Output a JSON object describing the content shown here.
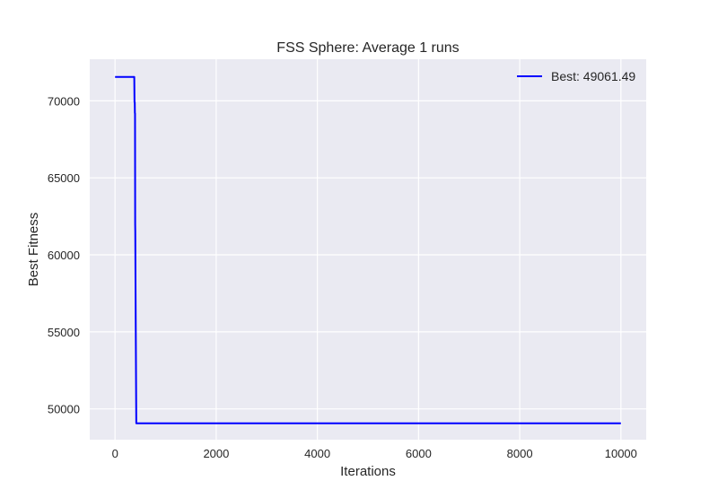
{
  "chart_data": {
    "type": "line",
    "title": "FSS Sphere: Average 1 runs",
    "xlabel": "Iterations",
    "ylabel": "Best Fitness",
    "xlim": [
      -500,
      10500
    ],
    "ylim": [
      48000,
      72700
    ],
    "xticks": [
      0,
      2000,
      4000,
      6000,
      8000,
      10000
    ],
    "xtick_labels": [
      "0",
      "2000",
      "4000",
      "6000",
      "8000",
      "10000"
    ],
    "yticks": [
      50000,
      55000,
      60000,
      65000,
      70000
    ],
    "ytick_labels": [
      "50000",
      "55000",
      "60000",
      "65000",
      "70000"
    ],
    "grid": true,
    "legend_position": "top-right",
    "series": [
      {
        "name": "Best: 49061.49",
        "color": "#0000ff",
        "x": [
          0,
          380,
          385,
          390,
          392,
          395,
          398,
          400,
          405,
          410,
          415,
          420,
          430,
          10000
        ],
        "y": [
          71550,
          71550,
          69900,
          69900,
          69200,
          69200,
          62000,
          61500,
          58000,
          55000,
          52000,
          49061.49,
          49061.49,
          49061.49
        ]
      }
    ]
  }
}
